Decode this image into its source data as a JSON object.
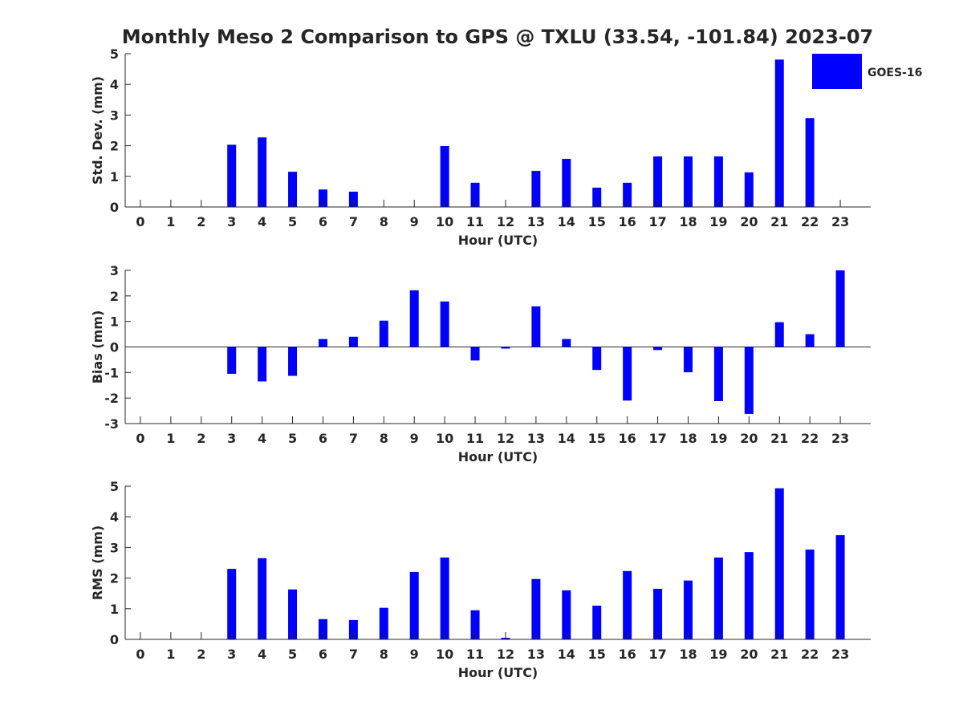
{
  "title": "Monthly Meso 2 Comparison to GPS @ TXLU (33.54, -101.84) 2023-07",
  "colors": {
    "bar": "#0000ff",
    "axis": "#262626",
    "background": "#ffffff"
  },
  "legend": {
    "label": "GOES-16",
    "position": "top-right"
  },
  "chart_data": [
    {
      "type": "bar",
      "xlabel": "Hour (UTC)",
      "ylabel": "Std. Dev. (mm)",
      "categories": [
        "0",
        "1",
        "2",
        "3",
        "4",
        "5",
        "6",
        "7",
        "8",
        "9",
        "10",
        "11",
        "12",
        "13",
        "14",
        "15",
        "16",
        "17",
        "18",
        "19",
        "20",
        "21",
        "22",
        "23"
      ],
      "ylim": [
        0,
        5
      ],
      "yticks": [
        "0",
        "1",
        "2",
        "3",
        "4",
        "5"
      ],
      "series": [
        {
          "name": "GOES-16",
          "values": [
            null,
            null,
            null,
            2.03,
            2.27,
            1.15,
            0.57,
            0.5,
            null,
            null,
            1.99,
            0.79,
            null,
            1.18,
            1.57,
            0.63,
            0.79,
            1.65,
            1.65,
            1.65,
            1.13,
            4.81,
            2.9,
            null
          ]
        }
      ]
    },
    {
      "type": "bar",
      "xlabel": "Hour (UTC)",
      "ylabel": "Bias (mm)",
      "categories": [
        "0",
        "1",
        "2",
        "3",
        "4",
        "5",
        "6",
        "7",
        "8",
        "9",
        "10",
        "11",
        "12",
        "13",
        "14",
        "15",
        "16",
        "17",
        "18",
        "19",
        "20",
        "21",
        "22",
        "23"
      ],
      "ylim": [
        -3,
        3
      ],
      "yticks": [
        "-3",
        "-2",
        "-1",
        "0",
        "1",
        "2",
        "3"
      ],
      "series": [
        {
          "name": "GOES-16",
          "values": [
            null,
            null,
            null,
            -1.05,
            -1.35,
            -1.13,
            0.31,
            0.4,
            1.03,
            2.22,
            1.78,
            -0.53,
            -0.05,
            1.59,
            0.31,
            -0.9,
            -2.1,
            -0.12,
            -0.99,
            -2.12,
            -2.62,
            0.97,
            0.5,
            3.0
          ]
        }
      ]
    },
    {
      "type": "bar",
      "xlabel": "Hour (UTC)",
      "ylabel": "RMS (mm)",
      "categories": [
        "0",
        "1",
        "2",
        "3",
        "4",
        "5",
        "6",
        "7",
        "8",
        "9",
        "10",
        "11",
        "12",
        "13",
        "14",
        "15",
        "16",
        "17",
        "18",
        "19",
        "20",
        "21",
        "22",
        "23"
      ],
      "ylim": [
        0,
        5
      ],
      "yticks": [
        "0",
        "1",
        "2",
        "3",
        "4",
        "5"
      ],
      "series": [
        {
          "name": "GOES-16",
          "values": [
            null,
            null,
            null,
            2.3,
            2.65,
            1.63,
            0.66,
            0.63,
            1.03,
            2.2,
            2.67,
            0.95,
            0.05,
            1.97,
            1.6,
            1.1,
            2.23,
            1.65,
            1.92,
            2.67,
            2.85,
            4.93,
            2.93,
            3.4
          ]
        }
      ]
    }
  ]
}
